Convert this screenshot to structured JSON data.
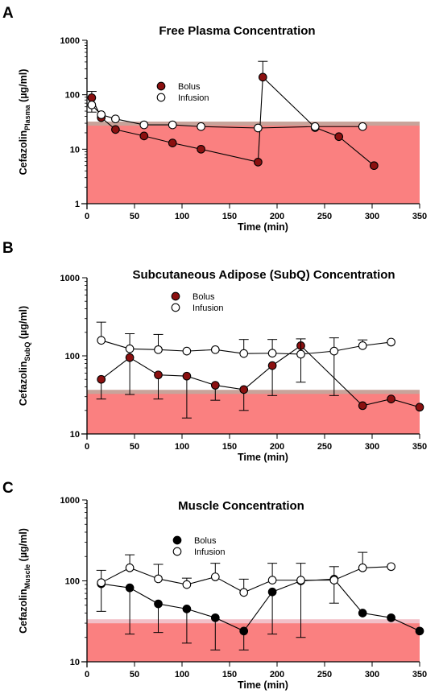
{
  "chart_data": [
    {
      "type": "line",
      "panel": "A",
      "title": "Free Plasma Concentration",
      "xlabel": "Time (min)",
      "ylabel_main": "Cefazolin",
      "ylabel_sub": "Plasma",
      "ylabel_unit": "(µg/ml)",
      "yscale": "log",
      "xlim": [
        0,
        350
      ],
      "ylim": [
        1,
        1000
      ],
      "xticks": [
        "0",
        "50",
        "100",
        "150",
        "200",
        "250",
        "300",
        "350"
      ],
      "yticks": [
        "1",
        "10",
        "100",
        "1000"
      ],
      "shaded_band": {
        "y_from": 1,
        "y_to": 30,
        "color": "#fa8080"
      },
      "reference_line": {
        "y": 30,
        "color": "#c8a39a"
      },
      "legend_position": "upper-left",
      "series": [
        {
          "name": "Bolus",
          "marker": "filled-circle",
          "color": "#8b1010",
          "x": [
            5,
            15,
            30,
            60,
            90,
            120,
            180,
            185,
            240,
            265,
            302
          ],
          "y": [
            88,
            38,
            23,
            17.5,
            13,
            10,
            5.8,
            210,
            25,
            17,
            5
          ],
          "err_upper": [
            115,
            null,
            null,
            null,
            null,
            null,
            null,
            410,
            null,
            null,
            null
          ],
          "err_lower": [
            null,
            null,
            null,
            null,
            null,
            null,
            null,
            null,
            null,
            null,
            null
          ]
        },
        {
          "name": "Infusion",
          "marker": "open-circle",
          "color": "#ffffff",
          "x": [
            5,
            15,
            30,
            60,
            90,
            120,
            180,
            240,
            290
          ],
          "y": [
            65,
            43,
            36,
            28,
            28,
            26,
            24.5,
            26,
            26
          ],
          "err_upper": [
            null,
            null,
            null,
            null,
            null,
            null,
            null,
            null,
            null
          ],
          "err_lower": [
            48,
            null,
            null,
            null,
            null,
            null,
            null,
            null,
            null
          ]
        }
      ]
    },
    {
      "type": "line",
      "panel": "B",
      "title": "Subcutaneous Adipose (SubQ) Concentration",
      "xlabel": "Time (min)",
      "ylabel_main": "Cefazolin",
      "ylabel_sub": "SubQ",
      "ylabel_unit": "(µg/ml)",
      "yscale": "log",
      "xlim": [
        0,
        350
      ],
      "ylim": [
        10,
        1000
      ],
      "xticks": [
        "0",
        "50",
        "100",
        "150",
        "200",
        "250",
        "300",
        "350"
      ],
      "yticks": [
        "10",
        "100",
        "1000"
      ],
      "shaded_band": {
        "y_from": 10,
        "y_to": 35,
        "color": "#fa8080"
      },
      "reference_line": {
        "y": 35,
        "color": "#c8a39a"
      },
      "legend_position": "upper-left",
      "series": [
        {
          "name": "Bolus",
          "marker": "filled-circle",
          "color": "#8b1010",
          "x": [
            15,
            45,
            75,
            105,
            135,
            165,
            195,
            225,
            290,
            320,
            350
          ],
          "y": [
            50,
            95,
            57,
            55,
            42,
            37,
            75,
            135,
            23,
            28,
            22
          ],
          "err_upper": [
            null,
            null,
            null,
            null,
            null,
            null,
            null,
            null,
            null,
            null,
            null
          ],
          "err_lower": [
            28,
            32,
            28,
            16,
            27,
            20,
            31,
            46,
            null,
            null,
            null
          ]
        },
        {
          "name": "Infusion",
          "marker": "open-circle",
          "color": "#ffffff",
          "x": [
            15,
            45,
            75,
            105,
            135,
            165,
            195,
            225,
            260,
            290,
            320
          ],
          "y": [
            158,
            123,
            120,
            115,
            120,
            107,
            108,
            105,
            115,
            135,
            150
          ],
          "err_upper": [
            270,
            192,
            188,
            null,
            null,
            162,
            162,
            165,
            170,
            160,
            null
          ],
          "err_lower": [
            null,
            null,
            null,
            null,
            null,
            null,
            null,
            null,
            31,
            null,
            null
          ]
        }
      ]
    },
    {
      "type": "line",
      "panel": "C",
      "title": "Muscle Concentration",
      "xlabel": "Time (min)",
      "ylabel_main": "Cefazolin",
      "ylabel_sub": "Muscle",
      "ylabel_unit": "(µg/ml)",
      "yscale": "log",
      "xlim": [
        0,
        350
      ],
      "ylim": [
        10,
        1000
      ],
      "xticks": [
        "0",
        "50",
        "100",
        "150",
        "200",
        "250",
        "300",
        "350"
      ],
      "yticks": [
        "10",
        "100",
        "1000"
      ],
      "shaded_band": {
        "y_from": 10,
        "y_to": 32,
        "color": "#fa8080"
      },
      "reference_line": {
        "y": 32,
        "color": "#f2c0c8"
      },
      "legend_position": "upper-left",
      "series": [
        {
          "name": "Bolus",
          "marker": "filled-circle",
          "color": "#000000",
          "x": [
            15,
            45,
            75,
            105,
            135,
            165,
            195,
            225,
            260,
            290,
            320,
            350
          ],
          "y": [
            92,
            82,
            52,
            45,
            35,
            24,
            73,
            100,
            105,
            40,
            35,
            24
          ],
          "err_upper": [
            null,
            null,
            null,
            null,
            null,
            null,
            null,
            null,
            null,
            null,
            null,
            null
          ],
          "err_lower": [
            42,
            22,
            23,
            17,
            14,
            14,
            22,
            20,
            53,
            null,
            null,
            null
          ]
        },
        {
          "name": "Infusion",
          "marker": "open-circle",
          "color": "#ffffff",
          "x": [
            15,
            45,
            75,
            105,
            135,
            165,
            195,
            225,
            260,
            290,
            320
          ],
          "y": [
            95,
            145,
            106,
            90,
            112,
            72,
            102,
            102,
            102,
            145,
            150
          ],
          "err_upper": [
            135,
            210,
            160,
            108,
            165,
            105,
            165,
            165,
            150,
            225,
            null
          ],
          "err_lower": [
            null,
            null,
            null,
            null,
            null,
            null,
            null,
            null,
            null,
            null,
            null
          ]
        }
      ]
    }
  ]
}
